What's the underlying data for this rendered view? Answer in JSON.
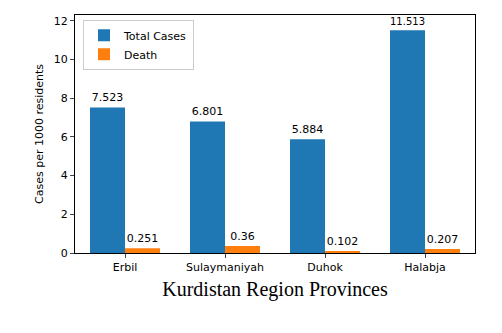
{
  "chart_data": {
    "type": "bar",
    "x_label": "Kurdistan Region Provinces",
    "y_label": "Cases per 1000 residents",
    "categories": [
      "Erbil",
      "Sulaymaniyah",
      "Duhok",
      "Halabja"
    ],
    "series": [
      {
        "name": "Total Cases",
        "color": "#1f77b4",
        "values": [
          7.523,
          6.801,
          5.884,
          11.513
        ]
      },
      {
        "name": "Death",
        "color": "#ff7f0e",
        "values": [
          0.251,
          0.36,
          0.102,
          0.207
        ]
      }
    ],
    "ylim": [
      0,
      12.3
    ],
    "yticks": [
      0,
      2,
      4,
      6,
      8,
      10,
      12
    ],
    "grid": false,
    "legend": "upper left",
    "data_labels": true
  }
}
